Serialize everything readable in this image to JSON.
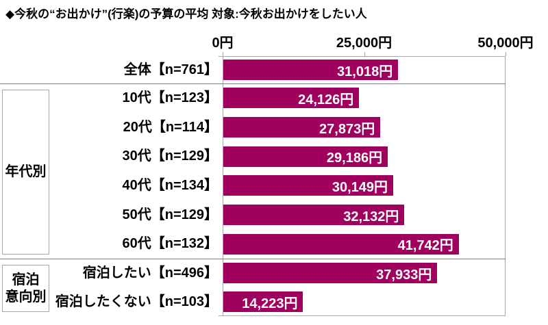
{
  "title": "◆今秋の“お出かけ”(行楽)の予算の平均 対象:今秋お出かけをしたい人",
  "colors": {
    "bar": "#a0005e",
    "plot_border": "#a6a6a6",
    "separator": "#7f7f7f",
    "value_text": "#ffffff",
    "label_text": "#000000"
  },
  "chart_data": {
    "type": "bar",
    "orientation": "horizontal",
    "title": "◆今秋の“お出かけ”(行楽)の予算の平均 対象:今秋お出かけをしたい人",
    "xlabel": "",
    "ylabel": "",
    "xlim": [
      0,
      50000
    ],
    "grid": false,
    "legend": "none",
    "axis_ticks": [
      {
        "value": 0,
        "label": "0円"
      },
      {
        "value": 25000,
        "label": "25,000円"
      },
      {
        "value": 50000,
        "label": "50,000円"
      }
    ],
    "groups": [
      {
        "label_lines": [],
        "rows": [
          {
            "label": "全体【n=761】",
            "value": 31018,
            "value_label": "31,018円"
          }
        ]
      },
      {
        "label_lines": [
          "年代別"
        ],
        "rows": [
          {
            "label": "10代【n=123】",
            "value": 24126,
            "value_label": "24,126円"
          },
          {
            "label": "20代【n=114】",
            "value": 27873,
            "value_label": "27,873円"
          },
          {
            "label": "30代【n=129】",
            "value": 29186,
            "value_label": "29,186円"
          },
          {
            "label": "40代【n=134】",
            "value": 30149,
            "value_label": "30,149円"
          },
          {
            "label": "50代【n=129】",
            "value": 32132,
            "value_label": "32,132円"
          },
          {
            "label": "60代【n=132】",
            "value": 41742,
            "value_label": "41,742円"
          }
        ]
      },
      {
        "label_lines": [
          "宿泊",
          "意向別"
        ],
        "rows": [
          {
            "label": "宿泊したい【n=496】",
            "value": 37933,
            "value_label": "37,933円"
          },
          {
            "label": "宿泊したくない【n=103】",
            "value": 14223,
            "value_label": "14,223円"
          }
        ]
      }
    ]
  }
}
